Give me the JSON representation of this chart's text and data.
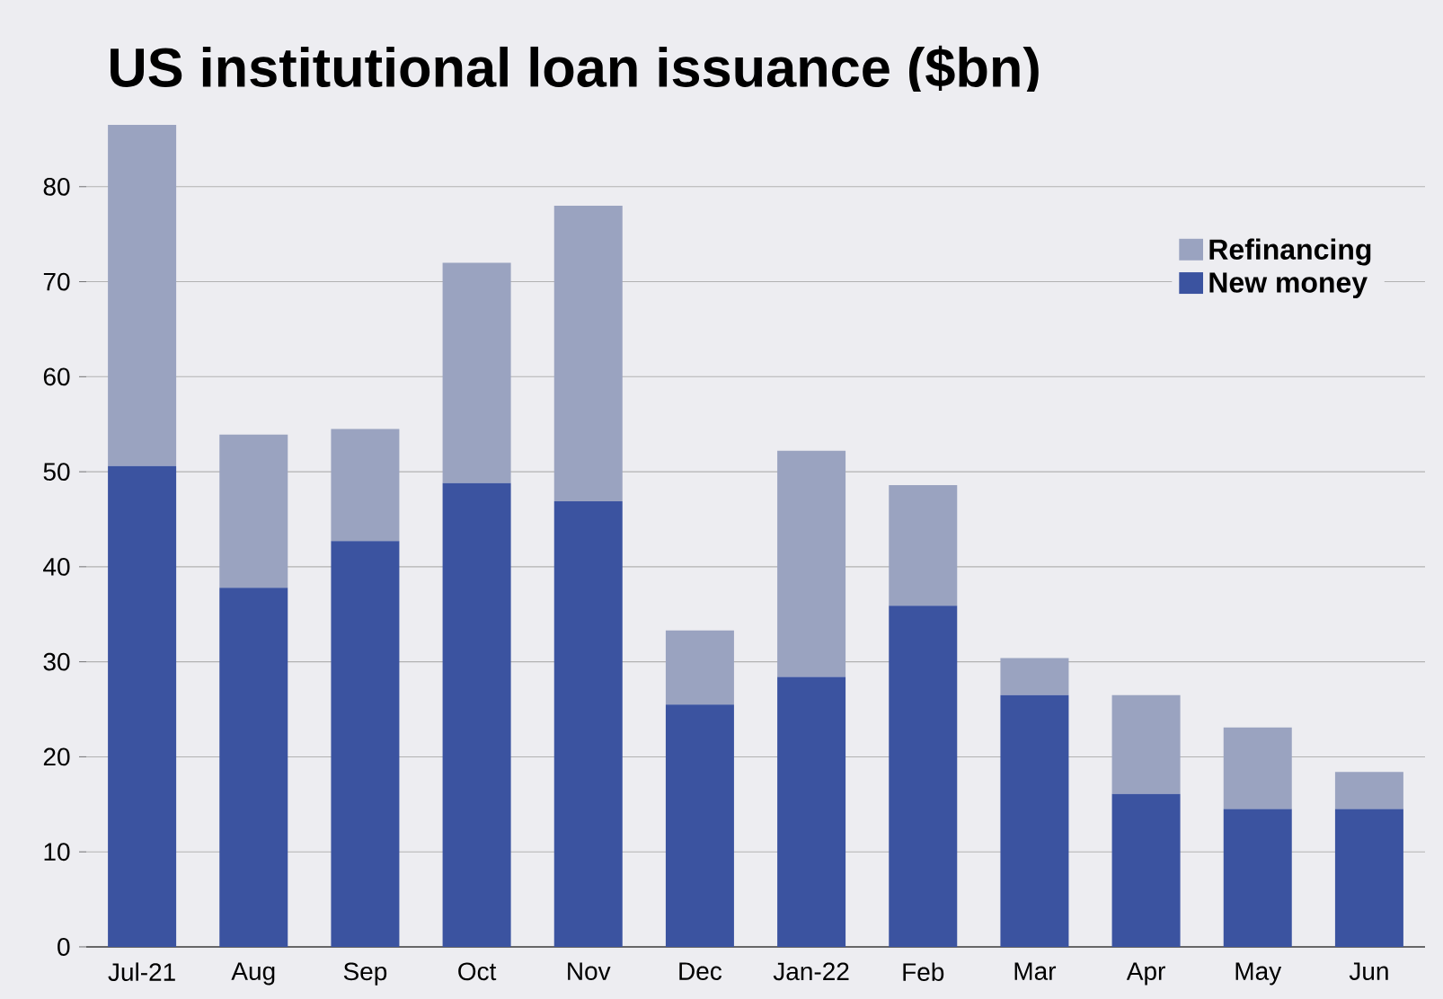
{
  "chart_data": {
    "type": "bar",
    "stacked": true,
    "title": "US institutional loan issuance ($bn)",
    "categories": [
      "Jul-21",
      "Aug",
      "Sep",
      "Oct",
      "Nov",
      "Dec",
      "Jan-22",
      "Feb",
      "Mar",
      "Apr",
      "May",
      "Jun"
    ],
    "series": [
      {
        "name": "New money",
        "color": "#3b53a0",
        "values": [
          50.6,
          37.8,
          42.7,
          48.8,
          46.9,
          25.5,
          28.4,
          35.9,
          26.5,
          16.1,
          14.5,
          14.5
        ]
      },
      {
        "name": "Refinancing",
        "color": "#9aa3c0",
        "values": [
          35.9,
          16.1,
          11.8,
          23.2,
          31.1,
          7.8,
          23.8,
          12.7,
          3.9,
          10.4,
          8.6,
          3.9
        ]
      }
    ],
    "ylim": [
      0,
      90
    ],
    "yticks": [
      0,
      10,
      20,
      30,
      40,
      50,
      60,
      70,
      80
    ],
    "grid": "y",
    "legend": "top right"
  }
}
